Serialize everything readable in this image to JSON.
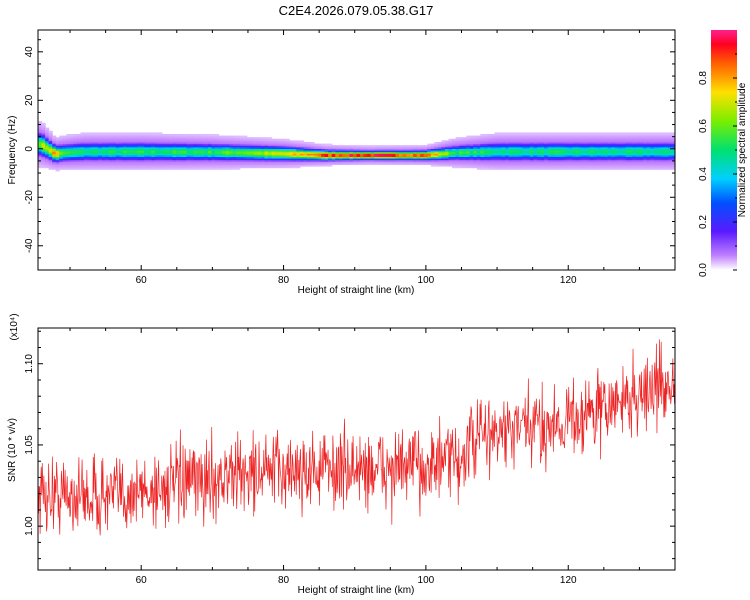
{
  "title": "C2E4.2026.079.05.38.G17",
  "chart_data": [
    {
      "type": "heatmap",
      "xlabel": "Height of straight line (km)",
      "ylabel": "Frequency (Hz)",
      "xlim": [
        45.5,
        135
      ],
      "ylim": [
        -50,
        49
      ],
      "x_ticks": [
        60,
        80,
        100,
        120
      ],
      "y_ticks": [
        -40,
        -20,
        0,
        20,
        40
      ],
      "colorbar": {
        "label": "Normalized spectral amplitude",
        "range": [
          0,
          1
        ],
        "ticks": [
          "0.0",
          "0.2",
          "0.4",
          "0.6",
          "0.8"
        ],
        "ticks_values": [
          0,
          0.2,
          0.4,
          0.6,
          0.8
        ]
      },
      "ridge": [
        {
          "x": 46,
          "center": 2,
          "width": 3.5,
          "peak": 0.65
        },
        {
          "x": 47,
          "center": 0,
          "width": 3.0,
          "peak": 0.7
        },
        {
          "x": 48,
          "center": -2,
          "width": 2.5,
          "peak": 0.85
        },
        {
          "x": 49,
          "center": -1.5,
          "width": 2.6,
          "peak": 0.55
        },
        {
          "x": 52,
          "center": -1,
          "width": 2.8,
          "peak": 0.5
        },
        {
          "x": 60,
          "center": -1,
          "width": 2.8,
          "peak": 0.52
        },
        {
          "x": 70,
          "center": -1.2,
          "width": 2.6,
          "peak": 0.55
        },
        {
          "x": 80,
          "center": -1.8,
          "width": 2.2,
          "peak": 0.7
        },
        {
          "x": 86,
          "center": -2.5,
          "width": 1.6,
          "peak": 0.92
        },
        {
          "x": 92,
          "center": -2.5,
          "width": 1.4,
          "peak": 0.98
        },
        {
          "x": 100,
          "center": -2.5,
          "width": 1.5,
          "peak": 0.9
        },
        {
          "x": 104,
          "center": -1.5,
          "width": 2.2,
          "peak": 0.55
        },
        {
          "x": 110,
          "center": -1,
          "width": 2.8,
          "peak": 0.5
        },
        {
          "x": 120,
          "center": -1,
          "width": 2.8,
          "peak": 0.5
        },
        {
          "x": 135,
          "center": -1,
          "width": 2.8,
          "peak": 0.48
        }
      ]
    },
    {
      "type": "line",
      "xlabel": "Height of straight line (km)",
      "ylabel": "SNR (10 * v/v)",
      "y_scale_label": "(x10⁴)",
      "xlim": [
        45.5,
        135
      ],
      "ylim": [
        0.973,
        1.122
      ],
      "x_ticks": [
        60,
        80,
        100,
        120
      ],
      "y_ticks": [
        1.0,
        1.05,
        1.1
      ],
      "y_tick_labels": [
        "1.00",
        "1.05",
        "1.10"
      ],
      "color": "#ee2222",
      "trend": [
        {
          "x": 45.5,
          "y": 1.02
        },
        {
          "x": 55,
          "y": 1.018
        },
        {
          "x": 65,
          "y": 1.025
        },
        {
          "x": 75,
          "y": 1.033
        },
        {
          "x": 85,
          "y": 1.035
        },
        {
          "x": 95,
          "y": 1.035
        },
        {
          "x": 105,
          "y": 1.04
        },
        {
          "x": 107,
          "y": 1.055
        },
        {
          "x": 115,
          "y": 1.06
        },
        {
          "x": 125,
          "y": 1.072
        },
        {
          "x": 135,
          "y": 1.09
        }
      ],
      "noise_amplitude": 0.012,
      "n_points": 1200
    }
  ]
}
